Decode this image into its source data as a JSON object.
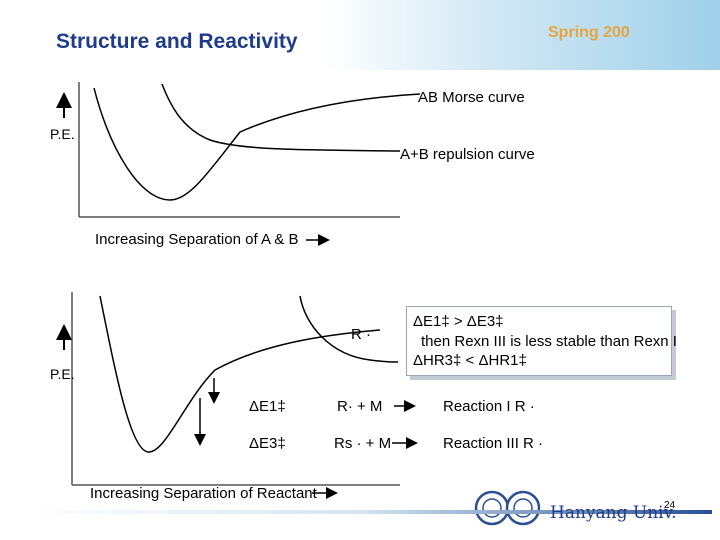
{
  "header": {
    "title": "Structure and Reactivity",
    "term": "Spring 200"
  },
  "top_diagram": {
    "ylabel": "P.E.",
    "xlabel": "Increasing Separation of A & B",
    "morse_label": "AB Morse curve",
    "repulsion_label": "A+B repulsion curve"
  },
  "bottom_diagram": {
    "ylabel": "P.E.",
    "xlabel": "Increasing Separation of Reactant",
    "radical_label": "R ·",
    "delta_e1": "ΔE1‡",
    "delta_e3": "ΔE3‡",
    "products_1": "R· + M",
    "products_3": "Rs · + M",
    "reaction_1": "Reaction I  R ·",
    "reaction_3": "Reaction III  R ·"
  },
  "callout": {
    "line1": "ΔE1‡ > ΔE3‡",
    "line2": "then Rexn III is less stable than Rexn I",
    "line3": "ΔHR3‡ < ΔHR1‡"
  },
  "footer": {
    "university": "Hanyang Univ.",
    "page": "24"
  }
}
